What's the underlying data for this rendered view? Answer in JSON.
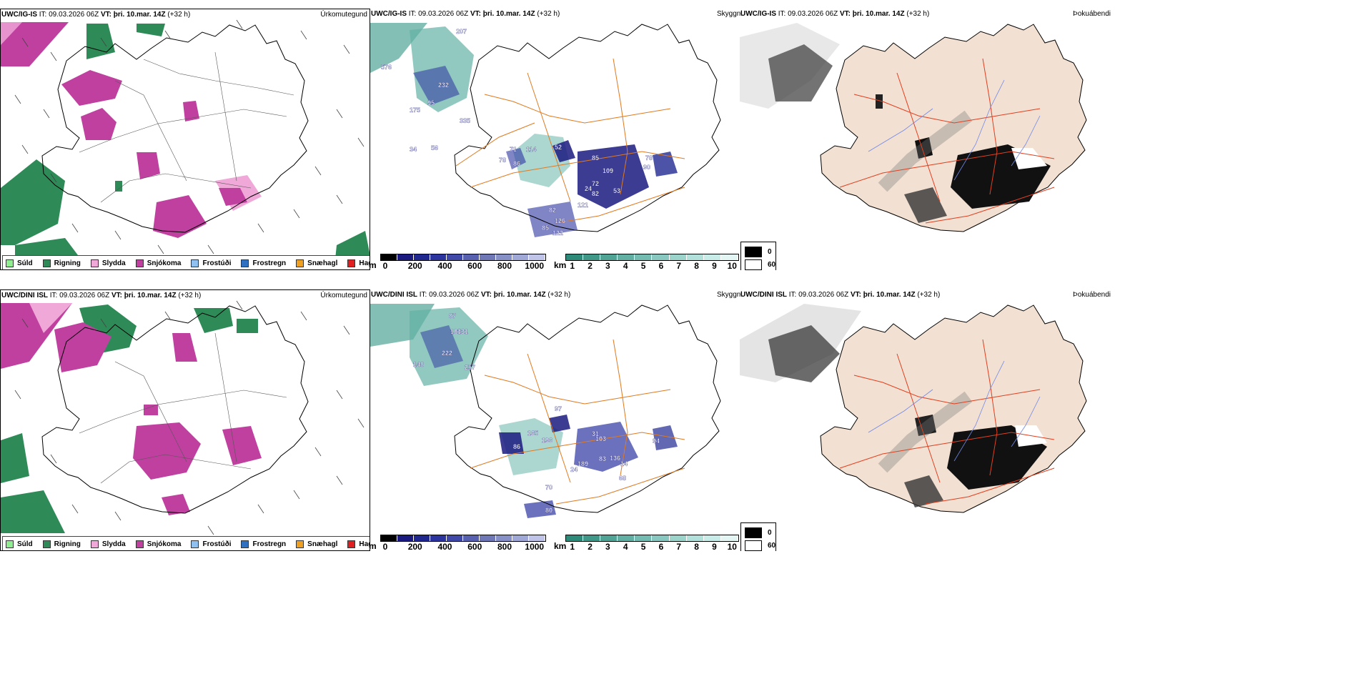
{
  "rows": [
    {
      "header": {
        "model": "UWC/IG-IS",
        "it_label": "IT:",
        "it_value": "09.03.2026 06Z",
        "vt_label": "VT:",
        "vt_value": "þri. 10.mar. 14Z",
        "lead": "(+32 h)"
      },
      "labels_map2": [
        "207",
        "576",
        "232",
        "95",
        "175",
        "335",
        "34",
        "56",
        "71",
        "114",
        "52",
        "78",
        "86",
        "85",
        "109",
        "78",
        "90",
        "72",
        "82",
        "53",
        "24",
        "82",
        "121",
        "126",
        "85",
        "122"
      ]
    },
    {
      "header": {
        "model": "UWC/DINI ISL",
        "it_label": "IT:",
        "it_value": "09.03.2026 06Z",
        "vt_label": "VT:",
        "vt_value": "þri. 10.mar. 14Z",
        "lead": "(+32 h)"
      },
      "labels_map2": [
        "87",
        "108",
        "131",
        "222",
        "257",
        "148",
        "97",
        "165",
        "196",
        "86",
        "31",
        "103",
        "136",
        "189",
        "83",
        "14",
        "94",
        "68",
        "24",
        "70",
        "80"
      ]
    }
  ],
  "titles": {
    "precip": "Úrkomutegund",
    "clouds": "Skyggni",
    "fog": "Þokuábendi"
  },
  "precip_legend": [
    {
      "label": "Súld",
      "color": "#90ee90"
    },
    {
      "label": "Rigning",
      "color": "#2e8b57"
    },
    {
      "label": "Slydda",
      "color": "#f0a8d8"
    },
    {
      "label": "Snjókoma",
      "color": "#c040a0"
    },
    {
      "label": "Frostúði",
      "color": "#90c0f0"
    },
    {
      "label": "Frostregn",
      "color": "#3070c0"
    },
    {
      "label": "Snæhagl",
      "color": "#f0a020"
    },
    {
      "label": "Haglél",
      "color": "#e02020"
    }
  ],
  "colorbar_m": {
    "unit": "m",
    "ticks": [
      "0",
      "200",
      "400",
      "600",
      "800",
      "1000"
    ],
    "colors": [
      "#000000",
      "#1a1a80",
      "#202890",
      "#2c34a0",
      "#4048a8",
      "#5860b0",
      "#7078b8",
      "#8890c8",
      "#a0a8d8",
      "#c0c4e8"
    ]
  },
  "colorbar_km": {
    "unit": "km",
    "ticks": [
      "1",
      "2",
      "3",
      "4",
      "5",
      "6",
      "7",
      "8",
      "9",
      "10"
    ],
    "colors": [
      "#2e8b7a",
      "#3f9888",
      "#50a496",
      "#62b0a4",
      "#74bcb2",
      "#88c8c0",
      "#9cd4cc",
      "#b2e0da",
      "#c8ece8",
      "#e4f6f4"
    ]
  },
  "fog_legend": [
    {
      "label": "0",
      "color": "#000000"
    },
    {
      "label": "60",
      "color": "#ffffff"
    }
  ],
  "colors": {
    "coast": "#000000",
    "roads": "#e07a20",
    "roads_fog": "#e04020",
    "land_fog": "#f2e0d2",
    "rivers": "#7088e8"
  }
}
